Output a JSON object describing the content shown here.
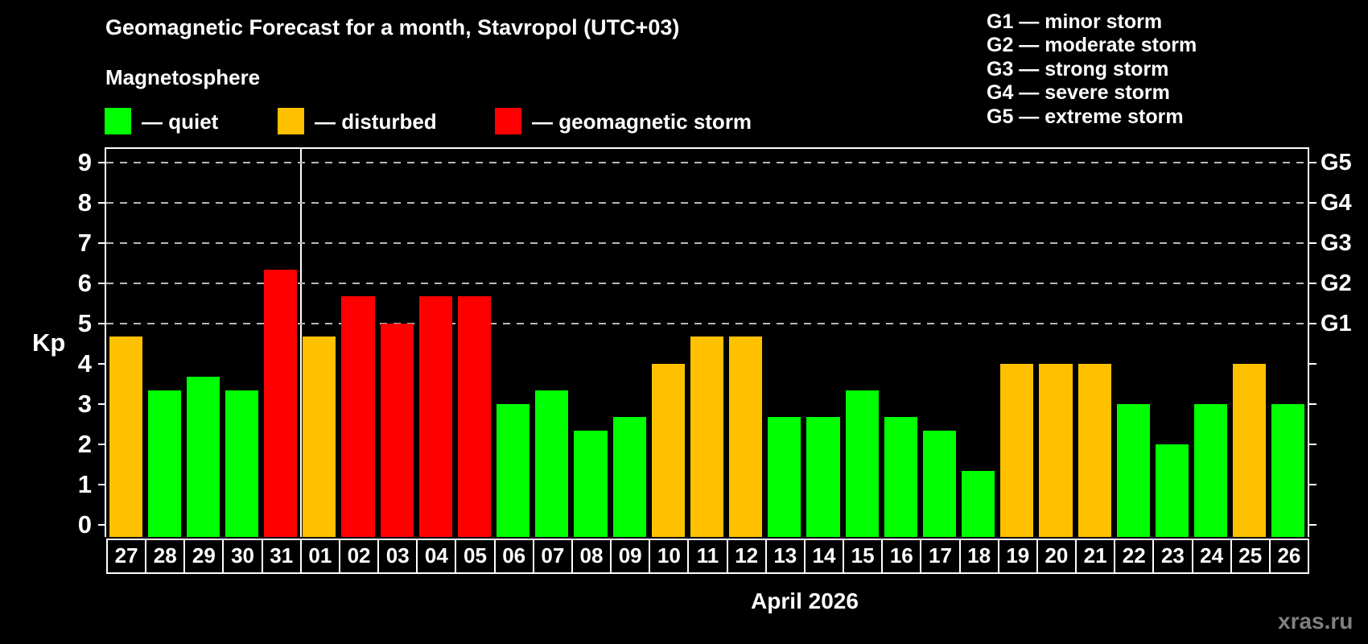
{
  "header": {
    "title": "Geomagnetic Forecast for a month, Stavropol (UTC+03)",
    "subtitle": "Magnetosphere"
  },
  "legend": {
    "items": [
      {
        "key": "quiet",
        "label": "— quiet",
        "color": "#00FF00"
      },
      {
        "key": "disturbed",
        "label": "— disturbed",
        "color": "#FFC000"
      },
      {
        "key": "storm",
        "label": "— geomagnetic storm",
        "color": "#FF0000"
      }
    ]
  },
  "storm_scale_legend": {
    "lines": [
      "G1 — minor storm",
      "G2 — moderate storm",
      "G3 — strong storm",
      "G4 — severe storm",
      "G5 — extreme storm"
    ]
  },
  "chart_data": {
    "type": "bar",
    "title": "Geomagnetic Forecast for a month, Stavropol (UTC+03)",
    "ylabel": "Kp",
    "xlabel": "April 2026",
    "ylim": [
      0,
      9
    ],
    "yticks": [
      0,
      1,
      2,
      3,
      4,
      5,
      6,
      7,
      8,
      9
    ],
    "gridlines_at_kp": [
      5,
      6,
      7,
      8,
      9
    ],
    "right_axis_labels": [
      {
        "label": "G1",
        "kp": 5
      },
      {
        "label": "G2",
        "kp": 6
      },
      {
        "label": "G3",
        "kp": 7
      },
      {
        "label": "G4",
        "kp": 8
      },
      {
        "label": "G5",
        "kp": 9
      }
    ],
    "month_boundary_after_index": 4,
    "colors": {
      "quiet": "#00FF00",
      "disturbed": "#FFC000",
      "storm": "#FF0000"
    },
    "bars": [
      {
        "day": "27",
        "kp": 4.67,
        "status": "disturbed"
      },
      {
        "day": "28",
        "kp": 3.33,
        "status": "quiet"
      },
      {
        "day": "29",
        "kp": 3.67,
        "status": "quiet"
      },
      {
        "day": "30",
        "kp": 3.33,
        "status": "quiet"
      },
      {
        "day": "31",
        "kp": 6.33,
        "status": "storm"
      },
      {
        "day": "01",
        "kp": 4.67,
        "status": "disturbed"
      },
      {
        "day": "02",
        "kp": 5.67,
        "status": "storm"
      },
      {
        "day": "03",
        "kp": 5.0,
        "status": "storm"
      },
      {
        "day": "04",
        "kp": 5.67,
        "status": "storm"
      },
      {
        "day": "05",
        "kp": 5.67,
        "status": "storm"
      },
      {
        "day": "06",
        "kp": 3.0,
        "status": "quiet"
      },
      {
        "day": "07",
        "kp": 3.33,
        "status": "quiet"
      },
      {
        "day": "08",
        "kp": 2.33,
        "status": "quiet"
      },
      {
        "day": "09",
        "kp": 2.67,
        "status": "quiet"
      },
      {
        "day": "10",
        "kp": 4.0,
        "status": "disturbed"
      },
      {
        "day": "11",
        "kp": 4.67,
        "status": "disturbed"
      },
      {
        "day": "12",
        "kp": 4.67,
        "status": "disturbed"
      },
      {
        "day": "13",
        "kp": 2.67,
        "status": "quiet"
      },
      {
        "day": "14",
        "kp": 2.67,
        "status": "quiet"
      },
      {
        "day": "15",
        "kp": 3.33,
        "status": "quiet"
      },
      {
        "day": "16",
        "kp": 2.67,
        "status": "quiet"
      },
      {
        "day": "17",
        "kp": 2.33,
        "status": "quiet"
      },
      {
        "day": "18",
        "kp": 1.33,
        "status": "quiet"
      },
      {
        "day": "19",
        "kp": 4.0,
        "status": "disturbed"
      },
      {
        "day": "20",
        "kp": 4.0,
        "status": "disturbed"
      },
      {
        "day": "21",
        "kp": 4.0,
        "status": "disturbed"
      },
      {
        "day": "22",
        "kp": 3.0,
        "status": "quiet"
      },
      {
        "day": "23",
        "kp": 2.0,
        "status": "quiet"
      },
      {
        "day": "24",
        "kp": 3.0,
        "status": "quiet"
      },
      {
        "day": "25",
        "kp": 4.0,
        "status": "disturbed"
      },
      {
        "day": "26",
        "kp": 3.0,
        "status": "quiet"
      }
    ]
  },
  "footer": {
    "xaxis_title": "April 2026",
    "watermark": "xras.ru"
  }
}
